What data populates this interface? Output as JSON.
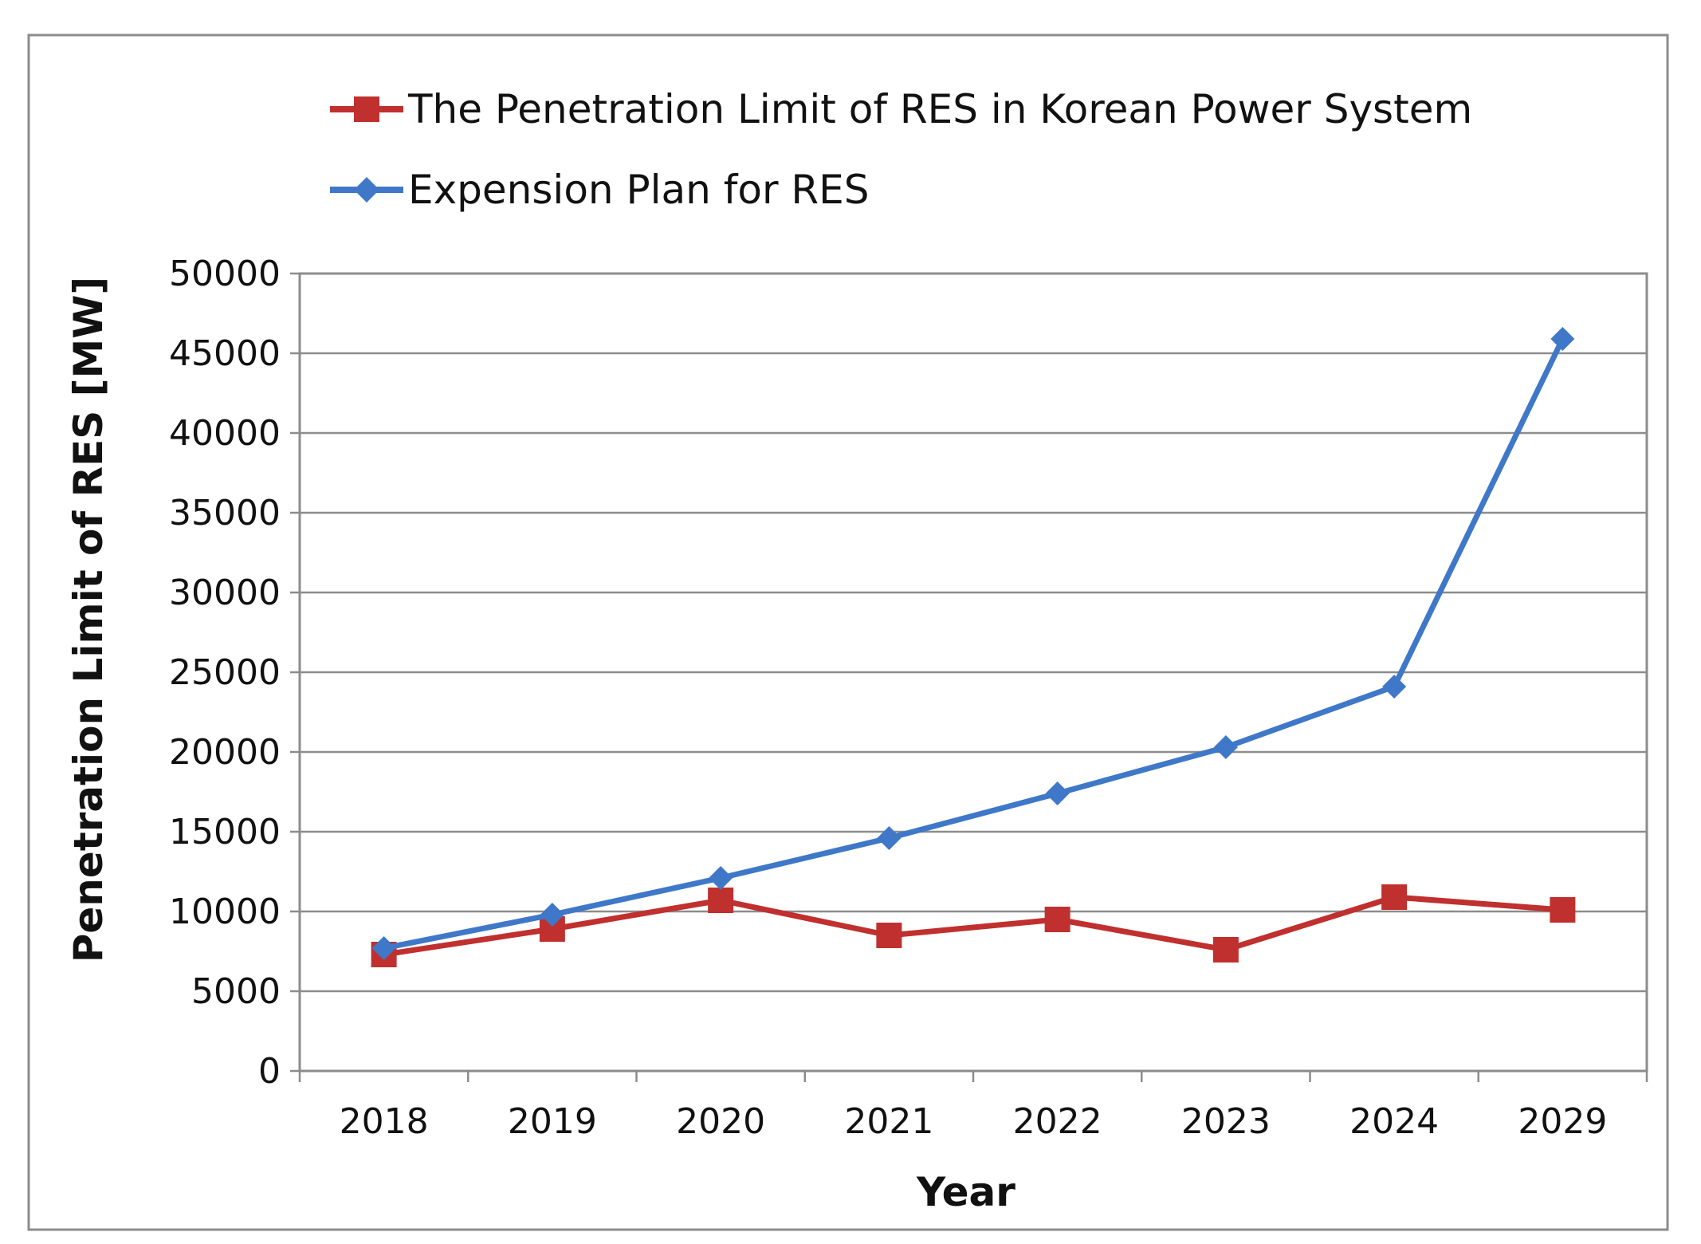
{
  "chart_data": {
    "type": "line",
    "title": "",
    "xlabel": "Year",
    "ylabel": "Penetration Limit of RES [MW]",
    "categories": [
      "2018",
      "2019",
      "2020",
      "2021",
      "2022",
      "2023",
      "2024",
      "2029"
    ],
    "ylim": [
      0,
      50000
    ],
    "yticks": [
      0,
      5000,
      10000,
      15000,
      20000,
      25000,
      30000,
      35000,
      40000,
      45000,
      50000
    ],
    "grid": true,
    "legend_position": "top",
    "series": [
      {
        "name": "The Penetration Limit of RES in Korean Power System",
        "marker": "square",
        "color": "#c0302e",
        "values": [
          7300,
          8900,
          10700,
          8500,
          9500,
          7600,
          10900,
          10100
        ]
      },
      {
        "name": "Expension Plan for RES",
        "marker": "diamond",
        "color": "#3f78c8",
        "values": [
          7700,
          9800,
          12100,
          14600,
          17400,
          20300,
          24100,
          45900
        ]
      }
    ]
  }
}
